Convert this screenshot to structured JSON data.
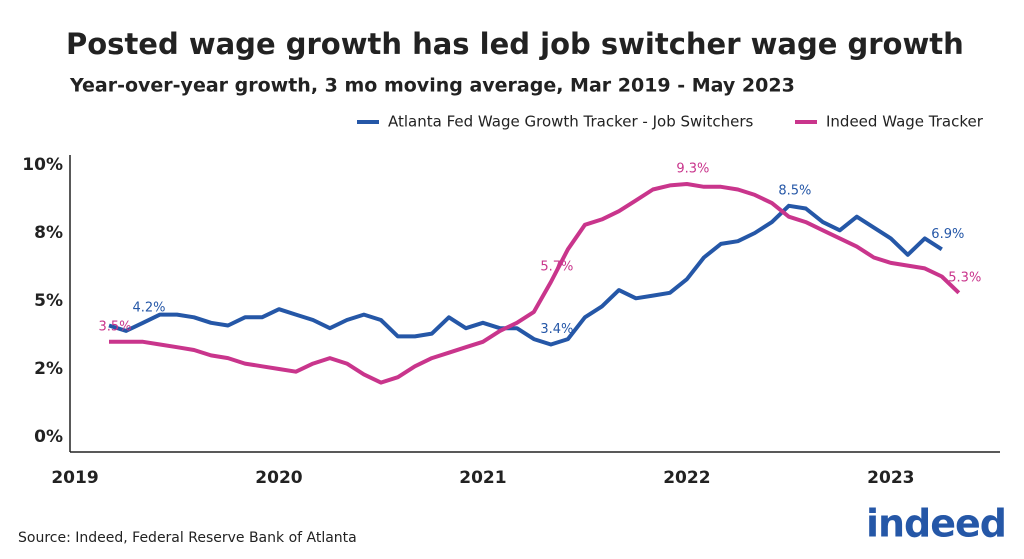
{
  "chart_data": {
    "type": "line",
    "title": "Posted wage growth has led job switcher wage growth",
    "subtitle": "Year-over-year growth, 3 mo moving average, Mar 2019 - May 2023",
    "source": "Source: Indeed, Federal Reserve Bank of Atlanta",
    "logo": "indeed",
    "x": [
      2019.1667,
      2019.25,
      2019.3333,
      2019.4167,
      2019.5,
      2019.5833,
      2019.6667,
      2019.75,
      2019.8333,
      2019.9167,
      2020,
      2020.0833,
      2020.1667,
      2020.25,
      2020.3333,
      2020.4167,
      2020.5,
      2020.5833,
      2020.6667,
      2020.75,
      2020.8333,
      2020.9167,
      2021,
      2021.0833,
      2021.1667,
      2021.25,
      2021.3333,
      2021.4167,
      2021.5,
      2021.5833,
      2021.6667,
      2021.75,
      2021.8333,
      2021.9167,
      2022,
      2022.0833,
      2022.1667,
      2022.25,
      2022.3333,
      2022.4167,
      2022.5,
      2022.5833,
      2022.6667,
      2022.75,
      2022.8333,
      2022.9167,
      2023,
      2023.0833,
      2023.1667,
      2023.25,
      2023.3333
    ],
    "series": [
      {
        "name": "Atlanta Fed Wage Growth Tracker - Job Switchers",
        "color": "#2557a7",
        "values": [
          4.1,
          3.9,
          4.2,
          4.5,
          4.5,
          4.4,
          4.2,
          4.1,
          4.4,
          4.4,
          4.7,
          4.5,
          4.3,
          4.0,
          4.3,
          4.5,
          4.3,
          3.7,
          3.7,
          3.8,
          4.4,
          4.0,
          4.2,
          4.0,
          4.0,
          3.6,
          3.4,
          3.6,
          4.4,
          4.8,
          5.4,
          5.1,
          5.2,
          5.3,
          5.8,
          6.6,
          7.1,
          7.2,
          7.5,
          7.9,
          8.5,
          8.4,
          7.9,
          7.6,
          8.1,
          7.7,
          7.3,
          6.7,
          7.3,
          6.9,
          null
        ],
        "value_labels": [
          null,
          null,
          "4.2%",
          null,
          null,
          null,
          null,
          null,
          null,
          null,
          null,
          null,
          null,
          null,
          null,
          null,
          null,
          null,
          null,
          null,
          null,
          null,
          null,
          null,
          null,
          null,
          "3.4%",
          null,
          null,
          null,
          null,
          null,
          null,
          null,
          null,
          null,
          null,
          null,
          null,
          null,
          "8.5%",
          null,
          null,
          null,
          null,
          null,
          null,
          null,
          null,
          "6.9%",
          null
        ]
      },
      {
        "name": "Indeed Wage Tracker",
        "color": "#c9358c",
        "values": [
          3.5,
          3.5,
          3.5,
          3.4,
          3.3,
          3.2,
          3.0,
          2.9,
          2.7,
          2.6,
          2.5,
          2.4,
          2.7,
          2.9,
          2.7,
          2.3,
          2.0,
          2.2,
          2.6,
          2.9,
          3.1,
          3.3,
          3.5,
          3.9,
          4.2,
          4.6,
          5.7,
          6.9,
          7.8,
          8.0,
          8.3,
          8.7,
          9.1,
          9.25,
          9.3,
          9.2,
          9.2,
          9.1,
          8.9,
          8.6,
          8.1,
          7.9,
          7.6,
          7.3,
          7.0,
          6.6,
          6.4,
          6.3,
          6.2,
          5.9,
          5.3
        ],
        "value_labels": [
          "3.5%",
          null,
          null,
          null,
          null,
          null,
          null,
          null,
          null,
          null,
          null,
          null,
          null,
          null,
          null,
          null,
          null,
          null,
          null,
          null,
          null,
          null,
          null,
          null,
          null,
          null,
          "5.7%",
          null,
          null,
          null,
          null,
          null,
          null,
          null,
          "9.3%",
          null,
          null,
          null,
          null,
          null,
          null,
          null,
          null,
          null,
          null,
          null,
          null,
          null,
          null,
          null,
          "5.3%"
        ]
      }
    ],
    "xlim": [
      2019,
      2023.55
    ],
    "xticks": [
      2019,
      2020,
      2021,
      2022,
      2023
    ],
    "ylim": [
      0,
      10.3
    ],
    "yticks": [
      {
        "value": 0,
        "label": "0%"
      },
      {
        "value": 2.5,
        "label": "2%"
      },
      {
        "value": 5,
        "label": "5%"
      },
      {
        "value": 7.5,
        "label": "8%"
      },
      {
        "value": 10,
        "label": "10%"
      }
    ],
    "legend": "top-right",
    "grid": false
  }
}
